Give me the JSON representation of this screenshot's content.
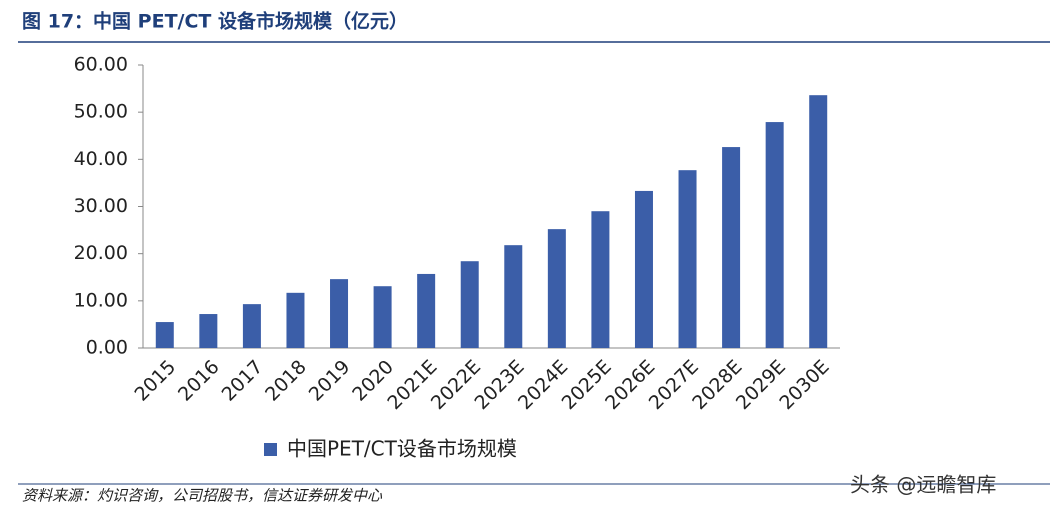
{
  "chart_data": {
    "type": "bar",
    "title": "图 17：中国 PET/CT 设备市场规模（亿元）",
    "categories": [
      "2015",
      "2016",
      "2017",
      "2018",
      "2019",
      "2020",
      "2021E",
      "2022E",
      "2023E",
      "2024E",
      "2025E",
      "2026E",
      "2027E",
      "2028E",
      "2029E",
      "2030E"
    ],
    "series": [
      {
        "name": "中国PET/CT设备市场规模",
        "color": "#3b5ea8",
        "values": [
          5.5,
          7.2,
          9.3,
          11.7,
          14.6,
          13.1,
          15.7,
          18.4,
          21.8,
          25.2,
          29.0,
          33.3,
          37.7,
          42.6,
          47.9,
          53.6
        ]
      }
    ],
    "ylim": [
      0,
      60
    ],
    "yticks": [
      {
        "value": 0,
        "label": "0.00"
      },
      {
        "value": 10,
        "label": "10.00"
      },
      {
        "value": 20,
        "label": "20.00"
      },
      {
        "value": 30,
        "label": "30.00"
      },
      {
        "value": 40,
        "label": "40.00"
      },
      {
        "value": 50,
        "label": "50.00"
      },
      {
        "value": 60,
        "label": "60.00"
      }
    ],
    "grid": false,
    "source": "资料来源：灼识咨询，公司招股书，信达证券研发中心",
    "watermark": "头条 @远瞻智库"
  }
}
